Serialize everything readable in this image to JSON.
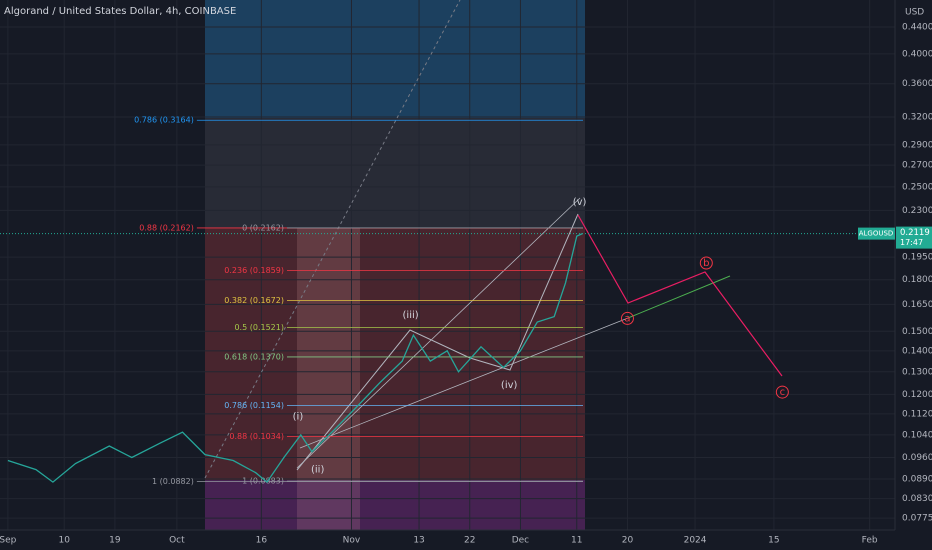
{
  "chart_data": {
    "type": "line",
    "title": "Algorand / United States Dollar, 4h, COINBASE",
    "y_axis_label": "USD",
    "log_scale": true,
    "grid": true,
    "x": [
      0,
      5,
      8,
      12,
      18,
      22,
      27,
      31,
      35,
      40,
      44,
      46,
      49,
      52,
      54,
      58,
      62,
      66,
      70,
      72,
      75,
      78,
      80,
      84,
      88,
      91,
      94,
      97,
      99,
      101,
      102
    ],
    "series": [
      {
        "name": "ALGOUSD",
        "color": "#26a69a",
        "values": [
          0.095,
          0.092,
          0.088,
          0.094,
          0.1,
          0.096,
          0.101,
          0.105,
          0.097,
          0.095,
          0.091,
          0.088,
          0.096,
          0.104,
          0.098,
          0.106,
          0.115,
          0.125,
          0.135,
          0.148,
          0.135,
          0.14,
          0.13,
          0.142,
          0.132,
          0.14,
          0.155,
          0.158,
          0.178,
          0.21,
          0.2119
        ]
      }
    ],
    "last_price": {
      "symbol": "ALGOUSD",
      "value": 0.2119,
      "label": "0.2119",
      "countdown": "17:47",
      "color": "#22ab94"
    },
    "xlim": [
      -1.4,
      157.5
    ],
    "xticks": [
      {
        "value": 0,
        "label": "Sep"
      },
      10,
      19,
      {
        "value": 30,
        "label": "Oct"
      },
      {
        "value": 45,
        "label": "16"
      },
      {
        "value": 61,
        "label": "Nov"
      },
      {
        "value": 73,
        "label": "13"
      },
      {
        "value": 82,
        "label": "22"
      },
      {
        "value": 91,
        "label": "Dec"
      },
      {
        "value": 101,
        "label": "11"
      },
      {
        "value": 110,
        "label": "20"
      },
      {
        "value": 122,
        "label": "2024"
      },
      {
        "value": 136,
        "label": "15"
      },
      {
        "value": 153,
        "label": "Feb"
      }
    ],
    "ylim": [
      0.0743,
      0.484
    ],
    "yticks": [
      {
        "value": 0.44,
        "label": "0.4400"
      },
      {
        "value": 0.4,
        "label": "0.4000"
      },
      {
        "value": 0.36,
        "label": "0.3600"
      },
      {
        "value": 0.32,
        "label": "0.3200"
      },
      {
        "value": 0.29,
        "label": "0.2900"
      },
      {
        "value": 0.27,
        "label": "0.2700"
      },
      {
        "value": 0.25,
        "label": "0.2500"
      },
      {
        "value": 0.23,
        "label": "0.2300"
      },
      {
        "value": 0.195,
        "label": "0.1950"
      },
      {
        "value": 0.18,
        "label": "0.1800"
      },
      {
        "value": 0.165,
        "label": "0.1650"
      },
      {
        "value": 0.15,
        "label": "0.1500"
      },
      {
        "value": 0.14,
        "label": "0.1400"
      },
      {
        "value": 0.13,
        "label": "0.1300"
      },
      {
        "value": 0.12,
        "label": "0.1200"
      },
      {
        "value": 0.112,
        "label": "0.1120"
      },
      {
        "value": 0.104,
        "label": "0.1040"
      },
      {
        "value": 0.096,
        "label": "0.0960"
      },
      {
        "value": 0.089,
        "label": "0.0890"
      },
      {
        "value": 0.083,
        "label": "0.0830"
      },
      {
        "value": 0.0775,
        "label": "0.0775"
      }
    ],
    "fib_levels": [
      {
        "text": "0.786 (0.3164)",
        "value": 0.3164,
        "color": "#2196f3",
        "x": 30
      },
      {
        "text": "0.88 (0.2162)",
        "value": 0.2162,
        "color": "#f23645",
        "x": 30
      },
      {
        "text": "0 (0.2162)",
        "value": 0.2162,
        "color": "#9598a1",
        "x": 46
      },
      {
        "text": "0.236 (0.1859)",
        "value": 0.1859,
        "color": "#f23645",
        "x": 46
      },
      {
        "text": "0.382 (0.1672)",
        "value": 0.1672,
        "color": "#e0c341",
        "x": 46
      },
      {
        "text": "0.5 (0.1521)",
        "value": 0.1521,
        "color": "#a5c84a",
        "x": 46
      },
      {
        "text": "0.618 (0.1370)",
        "value": 0.137,
        "color": "#81c784",
        "x": 46
      },
      {
        "text": "0.786 (0.1154)",
        "value": 0.1154,
        "color": "#64b5f6",
        "x": 46
      },
      {
        "text": "0.88 (0.1034)",
        "value": 0.1034,
        "color": "#f23645",
        "x": 46
      },
      {
        "text": "1 (0.0882)",
        "value": 0.0882,
        "color": "#9598a1",
        "x": 30
      },
      {
        "text": "1 (0.0883)",
        "value": 0.0883,
        "color": "#9598a1",
        "x": 46
      }
    ],
    "wave_labels": [
      {
        "text": "(i)",
        "x": 51.5,
        "y": 0.111,
        "color": "#d1d4dc"
      },
      {
        "text": "(ii)",
        "x": 55,
        "y": 0.092,
        "color": "#d1d4dc"
      },
      {
        "text": "(iii)",
        "x": 71.5,
        "y": 0.159,
        "color": "#d1d4dc"
      },
      {
        "text": "(iv)",
        "x": 89,
        "y": 0.124,
        "color": "#d1d4dc"
      },
      {
        "text": "(v)",
        "x": 101.5,
        "y": 0.237,
        "color": "#d1d4dc"
      },
      {
        "text": "a",
        "x": 110,
        "y": 0.157,
        "color": "#f23645"
      },
      {
        "text": "b",
        "x": 124,
        "y": 0.191,
        "color": "#f23645"
      },
      {
        "text": "c",
        "x": 137.5,
        "y": 0.121,
        "color": "#f23645"
      }
    ]
  }
}
